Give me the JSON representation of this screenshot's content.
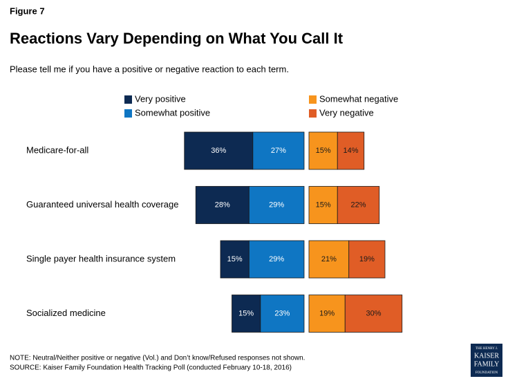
{
  "chart_data": {
    "type": "diverging-bar",
    "figure_label": "Figure 7",
    "title": "Reactions Vary Depending on What You Call It",
    "subtitle": "Please tell me if you have a positive or negative reaction to each term.",
    "categories": [
      "Medicare-for-all",
      "Guaranteed universal health coverage",
      "Single payer health insurance system",
      "Socialized medicine"
    ],
    "series": [
      {
        "name": "Very positive",
        "color": "#0d2a52",
        "label_color": "#ffffff",
        "side": "left",
        "values": [
          36,
          28,
          15,
          15
        ],
        "value_labels": [
          "36%",
          "28%",
          "15%",
          "15%"
        ]
      },
      {
        "name": "Somewhat positive",
        "color": "#0f76c3",
        "label_color": "#ffffff",
        "side": "left",
        "values": [
          27,
          29,
          29,
          23
        ],
        "value_labels": [
          "27%",
          "29%",
          "29%",
          "23%"
        ]
      },
      {
        "name": "Somewhat negative",
        "color": "#f7941d",
        "label_color": "#1a1a1a",
        "side": "right",
        "values": [
          15,
          15,
          21,
          19
        ],
        "value_labels": [
          "15%",
          "15%",
          "21%",
          "19%"
        ]
      },
      {
        "name": "Very negative",
        "color": "#e05d26",
        "label_color": "#1a1a1a",
        "side": "right",
        "values": [
          14,
          22,
          19,
          30
        ],
        "value_labels": [
          "14%",
          "22%",
          "19%",
          "30%"
        ]
      }
    ],
    "notes": [
      "NOTE: Neutral/Neither positive or negative (Vol.) and Don’t know/Refused responses not shown.",
      "SOURCE: Kaiser Family Foundation Health Tracking Poll (conducted February 10-18, 2016)"
    ],
    "logo": [
      "THE HENRY J.",
      "KAISER",
      "FAMILY",
      "FOUNDATION"
    ]
  }
}
